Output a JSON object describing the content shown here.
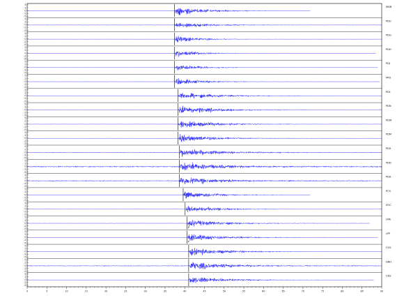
{
  "chart_data": {
    "type": "line",
    "title": "",
    "xlabel": "",
    "ylabel": "",
    "xlim": [
      0,
      90
    ],
    "x_ticks": [
      0,
      5,
      10,
      15,
      20,
      25,
      30,
      35,
      40,
      45,
      50,
      55,
      60,
      65,
      70,
      75,
      80,
      85,
      90
    ],
    "ylim": [
      -5,
      5
    ],
    "trace_color": "#1a1aff",
    "traces": [
      {
        "name": "MDB",
        "onset": 37.4,
        "end": 71.9,
        "amp": 1.0,
        "bg": 0.05,
        "coda": 8,
        "mark": ""
      },
      {
        "name": "PDU",
        "onset": 37.4,
        "end": 90.0,
        "amp": 0.75,
        "bg": 0.18,
        "coda": 7,
        "mark": ""
      },
      {
        "name": "PDG",
        "onset": 37.4,
        "end": 90.0,
        "amp": 0.85,
        "bg": 0.05,
        "coda": 6,
        "mark": ""
      },
      {
        "name": "PDH",
        "onset": 37.4,
        "end": 88.5,
        "amp": 0.8,
        "bg": 0.08,
        "coda": 6,
        "mark": ""
      },
      {
        "name": "PDJ",
        "onset": 37.4,
        "end": 89.0,
        "amp": 0.8,
        "bg": 0.1,
        "coda": 6,
        "mark": ""
      },
      {
        "name": "PPD",
        "onset": 37.4,
        "end": 89.5,
        "amp": 0.75,
        "bg": 0.1,
        "coda": 7,
        "mark": ""
      },
      {
        "name": "PDL",
        "onset": 38.3,
        "end": 90.0,
        "amp": 0.75,
        "bg": 0.1,
        "coda": 10,
        "mark": ""
      },
      {
        "name": "PDN",
        "onset": 38.3,
        "end": 90.0,
        "amp": 0.95,
        "bg": 0.12,
        "coda": 9,
        "mark": ""
      },
      {
        "name": "PDW",
        "onset": 38.3,
        "end": 90.0,
        "amp": 0.95,
        "bg": 0.12,
        "coda": 9,
        "mark": ""
      },
      {
        "name": "PDM",
        "onset": 38.3,
        "end": 90.0,
        "amp": 0.9,
        "bg": 0.15,
        "coda": 8,
        "mark": ""
      },
      {
        "name": "PDX",
        "onset": 38.6,
        "end": 90.0,
        "amp": 0.9,
        "bg": 0.25,
        "coda": 9,
        "mark": ""
      },
      {
        "name": "PDD",
        "onset": 38.6,
        "end": 90.0,
        "amp": 0.9,
        "bg": 0.45,
        "coda": 9,
        "mark": ""
      },
      {
        "name": "PDA",
        "onset": 38.6,
        "end": 90.0,
        "amp": 0.85,
        "bg": 0.35,
        "coda": 9,
        "mark": ""
      },
      {
        "name": "PCS",
        "onset": 39.6,
        "end": 71.9,
        "amp": 0.85,
        "bg": 0.06,
        "coda": 8,
        "mark": ""
      },
      {
        "name": "SOC",
        "onset": 40.1,
        "end": 90.0,
        "amp": 0.85,
        "bg": 0.06,
        "coda": 8,
        "mark": ""
      },
      {
        "name": "LME",
        "onset": 40.6,
        "end": 87.0,
        "amp": 0.8,
        "bg": 0.1,
        "coda": 9,
        "mark": "P"
      },
      {
        "name": "LPP",
        "onset": 40.6,
        "end": 89.0,
        "amp": 0.85,
        "bg": 0.1,
        "coda": 9,
        "mark": "P"
      },
      {
        "name": "CGS",
        "onset": 41.0,
        "end": 90.0,
        "amp": 0.9,
        "bg": 0.12,
        "coda": 9,
        "mark": ""
      },
      {
        "name": "DBH",
        "onset": 41.0,
        "end": 90.0,
        "amp": 0.9,
        "bg": 0.3,
        "coda": 9,
        "mark": ""
      },
      {
        "name": "CDS",
        "onset": 41.0,
        "end": 88.0,
        "amp": 0.85,
        "bg": 0.12,
        "coda": 9,
        "mark": ""
      }
    ]
  }
}
